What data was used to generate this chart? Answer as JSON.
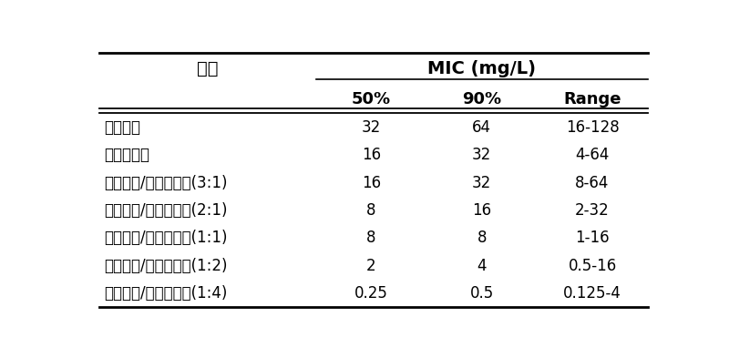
{
  "col_header_top": "MIC (mg/L)",
  "col_headers": [
    "药物",
    "50%",
    "90%",
    "Range"
  ],
  "rows": [
    [
      "美罗培南",
      "32",
      "64",
      "16-128"
    ],
    [
      "他唷巴坦钓",
      "16",
      "32",
      "4-64"
    ],
    [
      "美罗培南/他唷巴坦钓(3:1)",
      "16",
      "32",
      "8-64"
    ],
    [
      "美罗培南/他唷巴坦钓(2:1)",
      "8",
      "16",
      "2-32"
    ],
    [
      "美罗培南/他唷巴坦钓(1:1)",
      "8",
      "8",
      "1-16"
    ],
    [
      "美罗培南/他唷巴坦钓(1:2)",
      "2",
      "4",
      "0.5-16"
    ],
    [
      "美罗培南/他唷巴坦钓(1:4)",
      "0.25",
      "0.5",
      "0.125-4"
    ]
  ],
  "bg_color": "#ffffff",
  "text_color": "#000000",
  "fig_width": 8.0,
  "fig_height": 3.82,
  "font_size": 12,
  "header_font_size": 13
}
